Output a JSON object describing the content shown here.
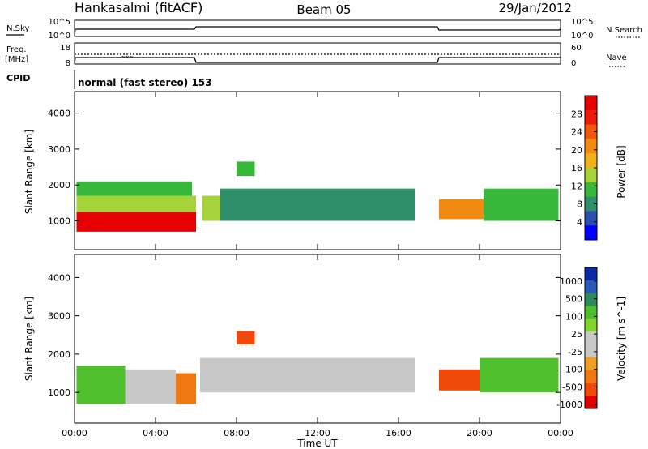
{
  "header": {
    "station": "Hankasalmi (fitACF)",
    "beam": "Beam 05",
    "date": "29/Jan/2012"
  },
  "top_panel": {
    "nsky_label": "N.Sky",
    "nsky_ticks": [
      "10^5",
      "10^0"
    ],
    "nsearch_label": "N.Search",
    "nsearch_ticks": [
      "10^5",
      "10^0"
    ],
    "freq_label_1": "Freq.",
    "freq_label_2": "[MHz]",
    "freq_ticks": [
      "18",
      "8"
    ],
    "nave_label": "Nave",
    "nave_ticks": [
      "60",
      "0"
    ],
    "cpid_label": "CPID",
    "cpid_text": "normal (fast stereo) 153"
  },
  "colors": {
    "power_scale": [
      "#0000ff",
      "#2a4fb0",
      "#2f8f6a",
      "#38b83a",
      "#a6d23a",
      "#f2b01e",
      "#f28a12",
      "#ef5a0a",
      "#ee1a0a",
      "#e60000"
    ],
    "velocity_scale": [
      "#0a2aa8",
      "#2a5ab8",
      "#2d8a5a",
      "#4fbf2e",
      "#7ed62a",
      "#c8c8c8",
      "#c8c8c8",
      "#f0a020",
      "#f07810",
      "#f04a0a",
      "#e00000"
    ]
  },
  "chart_data": [
    {
      "type": "heatmap",
      "name": "power",
      "ylabel": "Slant Range [km]",
      "yticks": [
        "1000",
        "2000",
        "3000",
        "4000"
      ],
      "ylim": [
        200,
        4600
      ],
      "colorbar_label": "Power [dB]",
      "colorbar_ticks": [
        "4",
        "8",
        "12",
        "16",
        "20",
        "24",
        "28"
      ],
      "colorbar_range": [
        0,
        32
      ],
      "regions": [
        {
          "t0": 0.1,
          "t1": 6.0,
          "r0": 700,
          "r1": 1250,
          "level": 29
        },
        {
          "t0": 0.1,
          "t1": 6.0,
          "r0": 1250,
          "r1": 1700,
          "level": 15
        },
        {
          "t0": 0.1,
          "t1": 5.8,
          "r0": 1700,
          "r1": 2100,
          "level": 10
        },
        {
          "t0": 6.3,
          "t1": 7.2,
          "r0": 1000,
          "r1": 1700,
          "level": 14
        },
        {
          "t0": 7.2,
          "t1": 16.8,
          "r0": 1000,
          "r1": 1900,
          "level": 9
        },
        {
          "t0": 8.0,
          "t1": 8.9,
          "r0": 2250,
          "r1": 2650,
          "level": 11
        },
        {
          "t0": 18.0,
          "t1": 20.2,
          "r0": 1050,
          "r1": 1600,
          "level": 22
        },
        {
          "t0": 20.2,
          "t1": 23.9,
          "r0": 1000,
          "r1": 1900,
          "level": 10
        }
      ]
    },
    {
      "type": "heatmap",
      "name": "velocity",
      "ylabel": "Slant Range [km]",
      "yticks": [
        "1000",
        "2000",
        "3000",
        "4000"
      ],
      "ylim": [
        200,
        4600
      ],
      "xlabel": "Time UT",
      "xticks": [
        "00:00",
        "04:00",
        "08:00",
        "12:00",
        "16:00",
        "20:00",
        "00:00"
      ],
      "xlim": [
        0,
        24
      ],
      "colorbar_label": "Velocity [m s^-1]",
      "colorbar_ticks": [
        "1000",
        "500",
        "100",
        "25",
        "-25",
        "-100",
        "-500",
        "-1000"
      ],
      "regions": [
        {
          "t0": 0.1,
          "t1": 2.5,
          "r0": 700,
          "r1": 1700,
          "level": 100
        },
        {
          "t0": 2.5,
          "t1": 5.0,
          "r0": 700,
          "r1": 1600,
          "level": 0
        },
        {
          "t0": 5.0,
          "t1": 6.0,
          "r0": 700,
          "r1": 1500,
          "level": -100
        },
        {
          "t0": 6.2,
          "t1": 16.8,
          "r0": 1000,
          "r1": 1900,
          "level": 0
        },
        {
          "t0": 8.0,
          "t1": 8.9,
          "r0": 2250,
          "r1": 2600,
          "level": -300
        },
        {
          "t0": 18.0,
          "t1": 20.0,
          "r0": 1050,
          "r1": 1600,
          "level": -300
        },
        {
          "t0": 20.0,
          "t1": 23.9,
          "r0": 1000,
          "r1": 1900,
          "level": 100
        }
      ]
    }
  ]
}
